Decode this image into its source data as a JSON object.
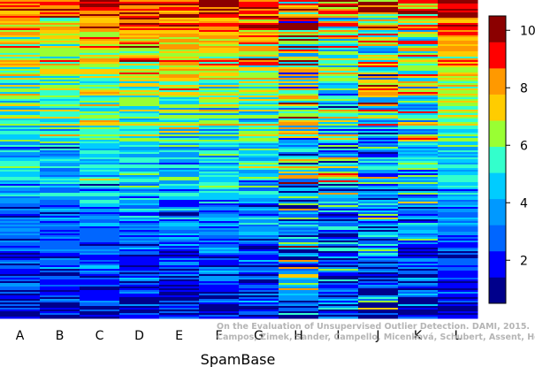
{
  "chart_data": {
    "type": "heatmap",
    "title": "",
    "xlabel": "SpamBase",
    "ylabel": "",
    "columns": [
      "A",
      "B",
      "C",
      "D",
      "E",
      "F",
      "G",
      "H",
      "I",
      "J",
      "K",
      "L"
    ],
    "sort_order": "rows sorted by column L value, descending",
    "value_range": [
      0.5,
      10.5
    ],
    "colorbar": {
      "ticks": [
        2,
        4,
        6,
        8,
        10
      ],
      "levels": 11,
      "colors": [
        "#00008b",
        "#0000ff",
        "#0066ff",
        "#0099ff",
        "#00ccff",
        "#33ffcc",
        "#99ff33",
        "#ffcc00",
        "#ff9900",
        "#ff0000",
        "#8b0000"
      ]
    },
    "column_profiles": {
      "A": {
        "top_band_mean": 8.8,
        "bottom_band_mean": 1.2,
        "noise": 0.8
      },
      "B": {
        "top_band_mean": 8.9,
        "bottom_band_mean": 1.2,
        "noise": 0.8
      },
      "C": {
        "top_band_mean": 9.4,
        "bottom_band_mean": 1.5,
        "noise": 1.0
      },
      "D": {
        "top_band_mean": 9.5,
        "bottom_band_mean": 1.4,
        "noise": 1.0
      },
      "E": {
        "top_band_mean": 9.6,
        "bottom_band_mean": 1.3,
        "noise": 0.9
      },
      "F": {
        "top_band_mean": 9.6,
        "bottom_band_mean": 1.3,
        "noise": 0.9
      },
      "G": {
        "top_band_mean": 9.5,
        "bottom_band_mean": 1.4,
        "noise": 1.1
      },
      "H": {
        "top_band_mean": 8.0,
        "bottom_band_mean": 3.0,
        "noise": 2.4
      },
      "I": {
        "top_band_mean": 8.0,
        "bottom_band_mean": 2.2,
        "noise": 1.7
      },
      "J": {
        "top_band_mean": 8.5,
        "bottom_band_mean": 1.5,
        "noise": 2.0
      },
      "K": {
        "top_band_mean": 8.6,
        "bottom_band_mean": 1.6,
        "noise": 1.5
      },
      "L": {
        "top_band_mean": 10.0,
        "bottom_band_mean": 1.1,
        "noise": 0.5
      }
    }
  },
  "watermark": {
    "line1": "On the Evaluation of Unsupervised Outlier Detection. DAMI, 2015.",
    "line2": "Campos, Zimek, Sander, Campello, Micenková, Schubert, Assent, Houle"
  }
}
